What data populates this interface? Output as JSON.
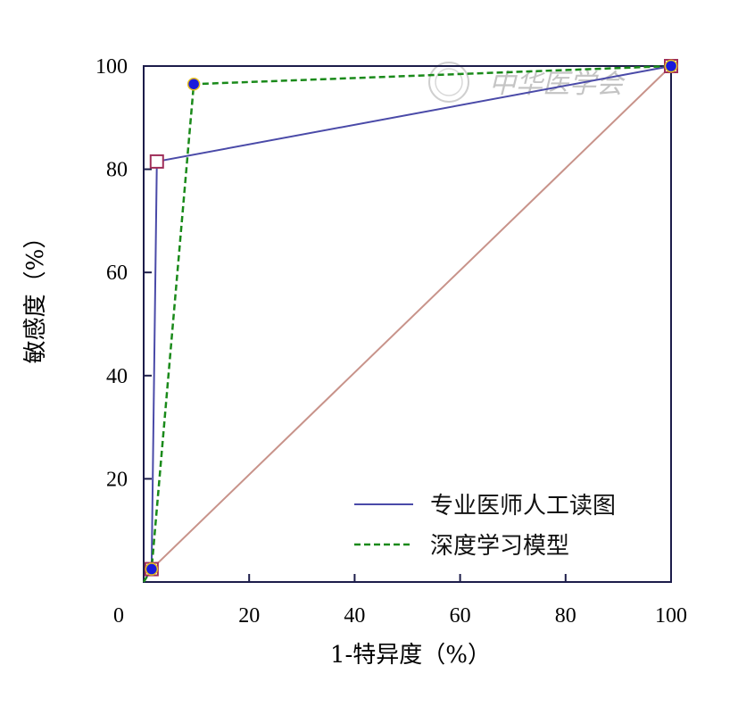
{
  "chart_data": {
    "type": "line",
    "title": "",
    "xlabel": "1-特异度（%）",
    "ylabel": "敏感度（%）",
    "xlim": [
      0,
      100
    ],
    "ylim": [
      0,
      100
    ],
    "x_origin_label": "0",
    "xticks": [
      20,
      40,
      60,
      80,
      100
    ],
    "yticks": [
      20,
      40,
      60,
      80,
      100
    ],
    "grid": false,
    "legend_position": "bottom-right",
    "series": [
      {
        "name": "专业医师人工读图",
        "color": "#4a4aa8",
        "style": "solid",
        "marker": "square",
        "points": [
          [
            0,
            0
          ],
          [
            1.5,
            2.5
          ],
          [
            2.5,
            81.5
          ],
          [
            100,
            100
          ]
        ]
      },
      {
        "name": "深度学习模型",
        "color": "#1a8a1a",
        "style": "dashed",
        "marker": "circle",
        "points": [
          [
            0,
            0
          ],
          [
            1.5,
            2.5
          ],
          [
            9.5,
            96.5
          ],
          [
            100,
            100
          ]
        ]
      }
    ],
    "reference_line": {
      "color": "#c8938a",
      "points": [
        [
          1.5,
          2.5
        ],
        [
          100,
          100
        ]
      ]
    }
  },
  "watermark": {
    "text": "中华医学会"
  }
}
